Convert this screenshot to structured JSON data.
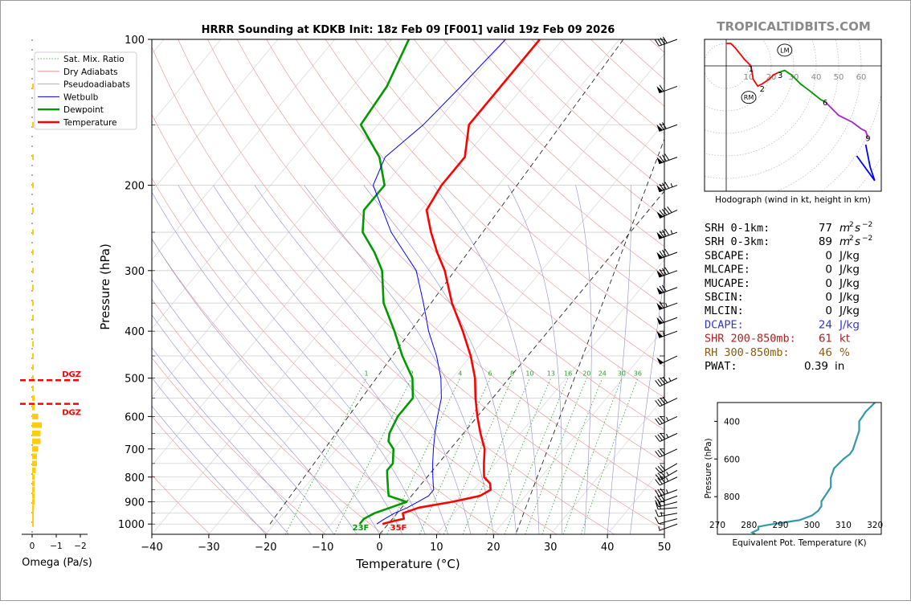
{
  "watermark": "TROPICALTIDBITS.COM",
  "chart_data": [
    {
      "type": "skew-t",
      "title": "HRRR Sounding at KDKB Init: 18z Feb 09 [F001] valid 19z Feb 09 2026",
      "xlabel": "Temperature (°C)",
      "ylabel": "Pressure (hPa)",
      "xlim": [
        -40,
        50
      ],
      "ylim": [
        1050,
        100
      ],
      "x_ticks": [
        "−40",
        "−30",
        "−20",
        "−10",
        "0",
        "10",
        "20",
        "30",
        "40",
        "50"
      ],
      "y_ticks": [
        "100",
        "200",
        "300",
        "400",
        "500",
        "600",
        "700",
        "800",
        "900",
        "1000"
      ],
      "legend": {
        "position": "top-left",
        "entries": [
          {
            "label": "Sat. Mix. Ratio",
            "color": "#2ca02c",
            "style": "dotted"
          },
          {
            "label": "Dry Adiabats",
            "color": "#e58080",
            "style": "solid"
          },
          {
            "label": "Pseudoadiabats",
            "color": "#9a9a9a",
            "style": "solid"
          },
          {
            "label": "Wetbulb",
            "color": "#0000ff",
            "style": "solid"
          },
          {
            "label": "Dewpoint",
            "color": "#009900",
            "style": "solid"
          },
          {
            "label": "Temperature",
            "color": "#ff0000",
            "style": "solid"
          }
        ]
      },
      "mixing_ratio_labels": [
        "1",
        "2",
        "4",
        "6",
        "8",
        "10",
        "13",
        "16",
        "20",
        "24",
        "30",
        "36"
      ],
      "surface_labels": {
        "dewpoint": "23F",
        "temperature": "35F"
      },
      "series": [
        {
          "name": "Temperature",
          "color": "#ff0000",
          "points": [
            [
              1000,
              -1
            ],
            [
              990,
              0
            ],
            [
              975,
              2
            ],
            [
              950,
              1
            ],
            [
              925,
              3
            ],
            [
              900,
              8
            ],
            [
              875,
              12
            ],
            [
              850,
              13
            ],
            [
              825,
              12
            ],
            [
              800,
              10
            ],
            [
              775,
              9
            ],
            [
              750,
              8
            ],
            [
              700,
              6
            ],
            [
              650,
              3
            ],
            [
              600,
              0
            ],
            [
              550,
              -3
            ],
            [
              500,
              -6
            ],
            [
              450,
              -10
            ],
            [
              400,
              -15
            ],
            [
              350,
              -21
            ],
            [
              300,
              -27
            ],
            [
              275,
              -31
            ],
            [
              250,
              -35
            ],
            [
              225,
              -39
            ],
            [
              200,
              -40
            ],
            [
              175,
              -40
            ],
            [
              150,
              -44
            ],
            [
              125,
              -44
            ],
            [
              100,
              -44
            ]
          ]
        },
        {
          "name": "Dewpoint",
          "color": "#009900",
          "points": [
            [
              1000,
              -5
            ],
            [
              975,
              -5
            ],
            [
              950,
              -4
            ],
            [
              925,
              -2
            ],
            [
              900,
              0
            ],
            [
              875,
              -4
            ],
            [
              850,
              -5
            ],
            [
              800,
              -7
            ],
            [
              775,
              -8
            ],
            [
              750,
              -8
            ],
            [
              700,
              -10
            ],
            [
              675,
              -12
            ],
            [
              650,
              -13
            ],
            [
              600,
              -14
            ],
            [
              550,
              -14
            ],
            [
              500,
              -17
            ],
            [
              450,
              -22
            ],
            [
              400,
              -27
            ],
            [
              350,
              -33
            ],
            [
              300,
              -38
            ],
            [
              275,
              -42
            ],
            [
              250,
              -47
            ],
            [
              225,
              -50
            ],
            [
              200,
              -50
            ],
            [
              175,
              -55
            ],
            [
              150,
              -63
            ],
            [
              125,
              -64
            ],
            [
              100,
              -67
            ]
          ]
        },
        {
          "name": "Wetbulb",
          "color": "#0000ff",
          "points": [
            [
              1000,
              -2
            ],
            [
              980,
              -1.5
            ],
            [
              965,
              -1
            ],
            [
              950,
              -0.5
            ],
            [
              925,
              1
            ],
            [
              900,
              2
            ],
            [
              875,
              3
            ],
            [
              850,
              3
            ],
            [
              825,
              2
            ],
            [
              800,
              1
            ],
            [
              775,
              0
            ],
            [
              750,
              -1
            ],
            [
              700,
              -3
            ],
            [
              650,
              -5
            ],
            [
              600,
              -7
            ],
            [
              550,
              -9
            ],
            [
              500,
              -12
            ],
            [
              450,
              -16
            ],
            [
              400,
              -21
            ],
            [
              350,
              -26
            ],
            [
              300,
              -32
            ],
            [
              250,
              -42
            ],
            [
              200,
              -52
            ],
            [
              175,
              -54
            ],
            [
              150,
              -52
            ],
            [
              125,
              -51
            ],
            [
              100,
              -50
            ]
          ]
        }
      ],
      "omega_panel": {
        "xlabel": "Omega (Pa/s)",
        "x_ticks": [
          "0",
          "−1",
          "−2"
        ],
        "dgz_label": "DGZ",
        "dgz_pressures": [
          505,
          565
        ],
        "values": [
          [
            1000,
            0.03
          ],
          [
            975,
            0.05
          ],
          [
            950,
            0.05
          ],
          [
            925,
            0.08
          ],
          [
            900,
            0.1
          ],
          [
            875,
            0.1
          ],
          [
            850,
            0.1
          ],
          [
            825,
            0.1
          ],
          [
            800,
            0.1
          ],
          [
            775,
            0.15
          ],
          [
            750,
            0.2
          ],
          [
            725,
            0.2
          ],
          [
            700,
            0.25
          ],
          [
            675,
            0.35
          ],
          [
            650,
            0.35
          ],
          [
            625,
            0.4
          ],
          [
            600,
            0.25
          ],
          [
            575,
            0.1
          ],
          [
            550,
            0.1
          ],
          [
            525,
            0.05
          ],
          [
            500,
            0.05
          ],
          [
            475,
            0.05
          ],
          [
            450,
            0.05
          ],
          [
            425,
            0.05
          ],
          [
            400,
            0.05
          ],
          [
            375,
            0.05
          ],
          [
            350,
            0.05
          ],
          [
            325,
            0.05
          ],
          [
            300,
            0.05
          ],
          [
            275,
            0.05
          ],
          [
            250,
            0.05
          ],
          [
            225,
            0.05
          ],
          [
            200,
            0.05
          ],
          [
            175,
            0.05
          ],
          [
            150,
            0.05
          ],
          [
            125,
            0.02
          ]
        ]
      },
      "wind_barbs": [
        {
          "p": 1000,
          "dir": 250,
          "speed": 5
        },
        {
          "p": 975,
          "dir": 255,
          "speed": 10
        },
        {
          "p": 950,
          "dir": 260,
          "speed": 15
        },
        {
          "p": 925,
          "dir": 265,
          "speed": 20
        },
        {
          "p": 900,
          "dir": 255,
          "speed": 25
        },
        {
          "p": 875,
          "dir": 250,
          "speed": 30
        },
        {
          "p": 850,
          "dir": 250,
          "speed": 35
        },
        {
          "p": 800,
          "dir": 245,
          "speed": 35
        },
        {
          "p": 775,
          "dir": 240,
          "speed": 35
        },
        {
          "p": 750,
          "dir": 240,
          "speed": 30
        },
        {
          "p": 700,
          "dir": 245,
          "speed": 30
        },
        {
          "p": 650,
          "dir": 245,
          "speed": 35
        },
        {
          "p": 600,
          "dir": 245,
          "speed": 35
        },
        {
          "p": 550,
          "dir": 245,
          "speed": 40
        },
        {
          "p": 500,
          "dir": 245,
          "speed": 45
        },
        {
          "p": 450,
          "dir": 245,
          "speed": 50
        },
        {
          "p": 400,
          "dir": 250,
          "speed": 55
        },
        {
          "p": 375,
          "dir": 250,
          "speed": 60
        },
        {
          "p": 350,
          "dir": 250,
          "speed": 65
        },
        {
          "p": 325,
          "dir": 250,
          "speed": 70
        },
        {
          "p": 300,
          "dir": 250,
          "speed": 80
        },
        {
          "p": 275,
          "dir": 250,
          "speed": 80
        },
        {
          "p": 250,
          "dir": 250,
          "speed": 85
        },
        {
          "p": 225,
          "dir": 245,
          "speed": 90
        },
        {
          "p": 200,
          "dir": 250,
          "speed": 85
        },
        {
          "p": 175,
          "dir": 250,
          "speed": 80
        },
        {
          "p": 150,
          "dir": 250,
          "speed": 70
        },
        {
          "p": 125,
          "dir": 250,
          "speed": 60
        },
        {
          "p": 100,
          "dir": 250,
          "speed": 40
        }
      ]
    },
    {
      "type": "line",
      "title": "",
      "caption": "Hodograph (wind in kt, height in km)",
      "ring_labels": [
        "10",
        "20",
        "30",
        "40",
        "50",
        "60"
      ],
      "markers": [
        {
          "label": "LM",
          "u": 26,
          "v": 7
        },
        {
          "label": "RM",
          "u": 10,
          "v": -14
        }
      ],
      "height_labels": [
        {
          "label": "1",
          "u": 11,
          "v": -1
        },
        {
          "label": "2",
          "u": 16,
          "v": -10
        },
        {
          "label": "3",
          "u": 24,
          "v": -4
        },
        {
          "label": "6",
          "u": 44,
          "v": -16
        },
        {
          "label": "9",
          "u": 63,
          "v": -32
        }
      ],
      "segments": [
        {
          "color": "#ff0000",
          "points": [
            [
              0,
              10
            ],
            [
              2,
              10
            ],
            [
              4,
              8
            ],
            [
              8,
              3
            ],
            [
              11,
              0
            ],
            [
              12,
              -6
            ],
            [
              14,
              -9
            ],
            [
              16,
              -8
            ],
            [
              19,
              -6
            ],
            [
              21,
              -4
            ],
            [
              23,
              -3
            ]
          ]
        },
        {
          "color": "#009900",
          "points": [
            [
              23,
              -3
            ],
            [
              26,
              -2
            ],
            [
              29,
              -4
            ],
            [
              33,
              -8
            ],
            [
              37,
              -11
            ],
            [
              42,
              -15
            ],
            [
              44,
              -16
            ]
          ]
        },
        {
          "color": "#aa22cc",
          "points": [
            [
              44,
              -16
            ],
            [
              50,
              -22
            ],
            [
              56,
              -25
            ],
            [
              60,
              -28
            ],
            [
              62,
              -29
            ],
            [
              63,
              -32
            ]
          ]
        },
        {
          "color": "#0000ff",
          "points": [
            [
              62,
              -35
            ],
            [
              63,
              -40
            ],
            [
              64,
              -45
            ],
            [
              66,
              -51
            ]
          ]
        },
        {
          "color": "#0000ff",
          "points": [
            [
              66,
              -51
            ],
            [
              58,
              -40
            ]
          ]
        }
      ]
    },
    {
      "type": "line",
      "title": "",
      "xlabel": "Equivalent Pot. Temperature (K)",
      "ylabel": "Pressure (hPa)",
      "xlim": [
        270,
        322
      ],
      "ylim": [
        1000,
        300
      ],
      "x_ticks": [
        "270",
        "280",
        "290",
        "300",
        "310",
        "320"
      ],
      "y_ticks": [
        "400",
        "600",
        "800"
      ],
      "series": [
        {
          "name": "",
          "color": "#3399aa",
          "points": [
            [
              1000,
              282
            ],
            [
              990,
              281
            ],
            [
              975,
              283
            ],
            [
              960,
              283
            ],
            [
              950,
              286
            ],
            [
              925,
              296
            ],
            [
              900,
              300
            ],
            [
              875,
              302
            ],
            [
              850,
              303
            ],
            [
              825,
              303
            ],
            [
              800,
              304
            ],
            [
              775,
              305
            ],
            [
              750,
              306
            ],
            [
              700,
              306
            ],
            [
              650,
              307
            ],
            [
              600,
              310
            ],
            [
              575,
              312
            ],
            [
              550,
              313
            ],
            [
              500,
              314
            ],
            [
              450,
              315
            ],
            [
              400,
              315
            ],
            [
              375,
              316
            ],
            [
              350,
              317
            ],
            [
              300,
              320
            ]
          ]
        }
      ]
    }
  ],
  "indices": [
    {
      "label": "SRH 0-1km:",
      "value": "77",
      "unit_base": "m",
      "unit_exp_1": "2",
      "unit_mid": "s",
      "unit_exp_2": "−2",
      "color": "#000000",
      "row": 0
    },
    {
      "label": "SRH 0-3km:",
      "value": "89",
      "unit_base": "m",
      "unit_exp_1": "2",
      "unit_mid": "s",
      "unit_exp_2": "−2",
      "color": "#000000",
      "row": 1
    },
    {
      "label": "SBCAPE:",
      "value": "0",
      "unit": "J/kg",
      "color": "#000000",
      "row": 2
    },
    {
      "label": "MLCAPE:",
      "value": "0",
      "unit": "J/kg",
      "color": "#000000",
      "row": 3
    },
    {
      "label": "MUCAPE:",
      "value": "0",
      "unit": "J/kg",
      "color": "#000000",
      "row": 4
    },
    {
      "label": "SBCIN:",
      "value": "0",
      "unit": "J/kg",
      "color": "#000000",
      "row": 5
    },
    {
      "label": "MLCIN:",
      "value": "0",
      "unit": "J/kg",
      "color": "#000000",
      "row": 6
    },
    {
      "label": "DCAPE:",
      "value": "24",
      "unit": "J/kg",
      "color": "#3333dd",
      "row": 7
    },
    {
      "label": "SHR 200-850mb:",
      "value": "61",
      "unit": "kt",
      "color": "#aa2222",
      "row": 8
    },
    {
      "label": "RH 300-850mb:",
      "value": "46",
      "unit": "%",
      "color": "#8a5a10",
      "row": 9
    },
    {
      "label": "PWAT:",
      "value": "0.39",
      "unit": "in",
      "color": "#000000",
      "row": 10
    }
  ]
}
